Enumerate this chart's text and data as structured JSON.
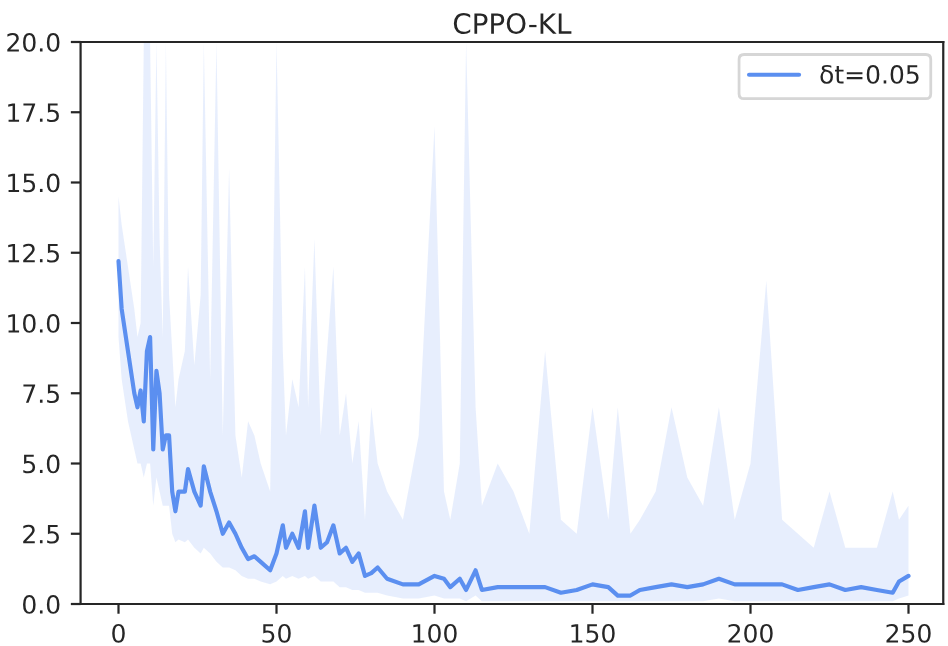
{
  "chart_data": {
    "type": "line",
    "title": "CPPO-KL",
    "xlim": [
      -12,
      261
    ],
    "xticks": [
      0,
      50,
      100,
      150,
      200,
      250
    ],
    "ylim": [
      0,
      20
    ],
    "yticks": [
      {
        "value": 0,
        "label": "0.0"
      },
      {
        "value": 2.5,
        "label": "2.5"
      },
      {
        "value": 5,
        "label": "5.0"
      },
      {
        "value": 7.5,
        "label": "7.5"
      },
      {
        "value": 10,
        "label": "10.0"
      },
      {
        "value": 12.5,
        "label": "12.5"
      },
      {
        "value": 15,
        "label": "15.0"
      },
      {
        "value": 17.5,
        "label": "17.5"
      },
      {
        "value": 20,
        "label": "20.0"
      }
    ],
    "grid": false,
    "legend": "top right",
    "series": [
      {
        "name": "δt=0.05",
        "color": "#5b8ff0",
        "x": [
          0,
          1,
          3,
          5,
          6,
          7,
          8,
          9,
          10,
          11,
          12,
          13,
          14,
          15,
          16,
          17,
          18,
          19,
          21,
          22,
          24,
          26,
          27,
          29,
          31,
          33,
          35,
          37,
          39,
          41,
          43,
          45,
          48,
          50,
          52,
          53,
          55,
          57,
          59,
          60,
          62,
          64,
          66,
          68,
          70,
          72,
          74,
          76,
          78,
          80,
          82,
          85,
          90,
          95,
          100,
          103,
          105,
          108,
          110,
          113,
          115,
          120,
          125,
          130,
          135,
          140,
          145,
          150,
          155,
          158,
          162,
          165,
          170,
          175,
          180,
          185,
          190,
          195,
          200,
          205,
          210,
          215,
          220,
          225,
          230,
          235,
          240,
          245,
          247,
          250
        ],
        "values": [
          12.2,
          10.5,
          9.0,
          7.5,
          7.0,
          7.6,
          6.5,
          9.0,
          9.5,
          5.5,
          8.3,
          7.5,
          5.5,
          6.0,
          6.0,
          4.0,
          3.3,
          4.0,
          4.0,
          4.8,
          4.0,
          3.5,
          4.9,
          4.0,
          3.3,
          2.5,
          2.9,
          2.5,
          2.0,
          1.6,
          1.7,
          1.5,
          1.2,
          1.8,
          2.8,
          2.0,
          2.5,
          2.0,
          3.3,
          2.0,
          3.5,
          2.0,
          2.2,
          2.8,
          1.8,
          2.0,
          1.5,
          1.8,
          1.0,
          1.1,
          1.3,
          0.9,
          0.7,
          0.7,
          1.0,
          0.9,
          0.6,
          0.9,
          0.5,
          1.2,
          0.5,
          0.6,
          0.6,
          0.6,
          0.6,
          0.4,
          0.5,
          0.7,
          0.6,
          0.3,
          0.3,
          0.5,
          0.6,
          0.7,
          0.6,
          0.7,
          0.9,
          0.7,
          0.7,
          0.7,
          0.7,
          0.5,
          0.6,
          0.7,
          0.5,
          0.6,
          0.5,
          0.4,
          0.8,
          1.0
        ],
        "lower": [
          9.5,
          8.0,
          6.5,
          5.5,
          5.0,
          5.0,
          4.5,
          5.0,
          5.0,
          3.5,
          4.5,
          4.0,
          3.5,
          3.5,
          3.5,
          2.5,
          2.2,
          2.3,
          2.2,
          2.3,
          2.0,
          1.8,
          2.0,
          1.8,
          1.5,
          1.3,
          1.3,
          1.2,
          1.0,
          0.9,
          0.9,
          0.8,
          0.7,
          0.8,
          1.0,
          0.9,
          1.0,
          0.9,
          1.0,
          0.9,
          1.0,
          0.8,
          0.8,
          0.8,
          0.6,
          0.6,
          0.5,
          0.5,
          0.4,
          0.4,
          0.4,
          0.3,
          0.2,
          0.2,
          0.3,
          0.2,
          0.2,
          0.2,
          0.1,
          0.3,
          0.1,
          0.1,
          0.1,
          0.1,
          0.1,
          0.1,
          0.1,
          0.1,
          0.1,
          0.1,
          0.1,
          0.1,
          0.1,
          0.1,
          0.1,
          0.1,
          0.2,
          0.1,
          0.1,
          0.1,
          0.1,
          0.1,
          0.1,
          0.1,
          0.1,
          0.1,
          0.1,
          0.1,
          0.2,
          0.3
        ],
        "upper": [
          14.5,
          13.5,
          12.0,
          10.5,
          9.5,
          10.0,
          20.0,
          20.0,
          20.0,
          12.0,
          20.0,
          13.0,
          9.5,
          20.0,
          11.0,
          9.0,
          7.0,
          8.0,
          9.0,
          12.0,
          8.5,
          11.0,
          20.0,
          8.0,
          20.0,
          6.0,
          15.5,
          6.0,
          4.5,
          6.5,
          6.0,
          5.0,
          4.0,
          20.0,
          9.0,
          6.0,
          8.0,
          7.0,
          12.0,
          7.0,
          13.0,
          6.0,
          9.0,
          12.0,
          6.0,
          7.5,
          5.0,
          6.5,
          3.0,
          7.0,
          5.0,
          4.0,
          3.0,
          6.0,
          17.0,
          4.0,
          3.0,
          5.0,
          20.0,
          7.0,
          3.5,
          5.0,
          4.0,
          2.5,
          9.0,
          3.0,
          2.5,
          7.0,
          3.0,
          7.0,
          2.5,
          3.0,
          4.0,
          7.0,
          4.5,
          3.5,
          7.0,
          3.0,
          5.0,
          11.5,
          3.0,
          2.5,
          2.0,
          4.0,
          2.0,
          2.0,
          2.0,
          4.0,
          3.0,
          3.5
        ]
      }
    ]
  }
}
